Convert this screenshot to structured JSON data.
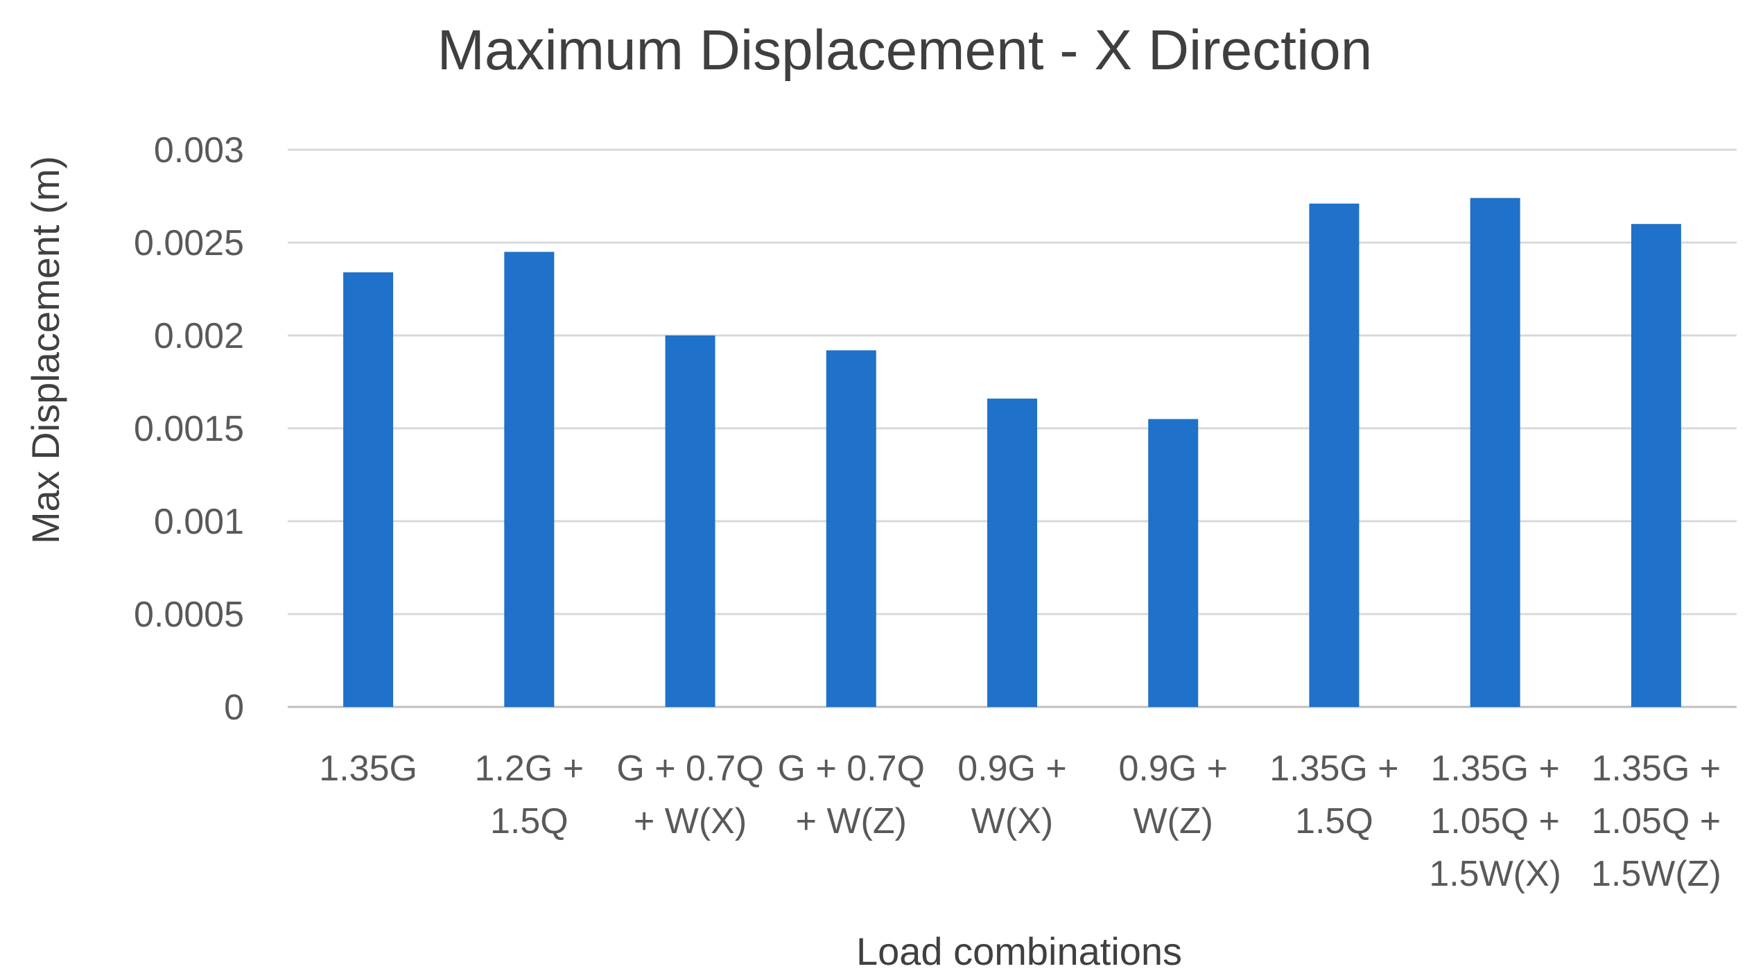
{
  "chart_data": {
    "type": "bar",
    "title": "Maximum Displacement - X Direction",
    "xlabel": "Load combinations",
    "ylabel": "Max Displacement (m)",
    "ylim": [
      0,
      0.003
    ],
    "yticks": [
      0,
      0.0005,
      0.001,
      0.0015,
      0.002,
      0.0025,
      0.003
    ],
    "ytick_labels": [
      "0",
      "0.0005",
      "0.001",
      "0.0015",
      "0.002",
      "0.0025",
      "0.003"
    ],
    "grid": true,
    "legend": "none",
    "bar_color": "#1f71c9",
    "categories": [
      [
        "1.35G"
      ],
      [
        "1.2G +",
        "1.5Q"
      ],
      [
        "G + 0.7Q",
        "+ W(X)"
      ],
      [
        "G + 0.7Q",
        "+ W(Z)"
      ],
      [
        "0.9G +",
        "W(X)"
      ],
      [
        "0.9G +",
        "W(Z)"
      ],
      [
        "1.35G +",
        "1.5Q"
      ],
      [
        "1.35G +",
        "1.05Q +",
        "1.5W(X)"
      ],
      [
        "1.35G +",
        "1.05Q +",
        "1.5W(Z)"
      ]
    ],
    "values": [
      0.00234,
      0.00245,
      0.002,
      0.00192,
      0.00166,
      0.00155,
      0.00271,
      0.00274,
      0.0026
    ]
  }
}
